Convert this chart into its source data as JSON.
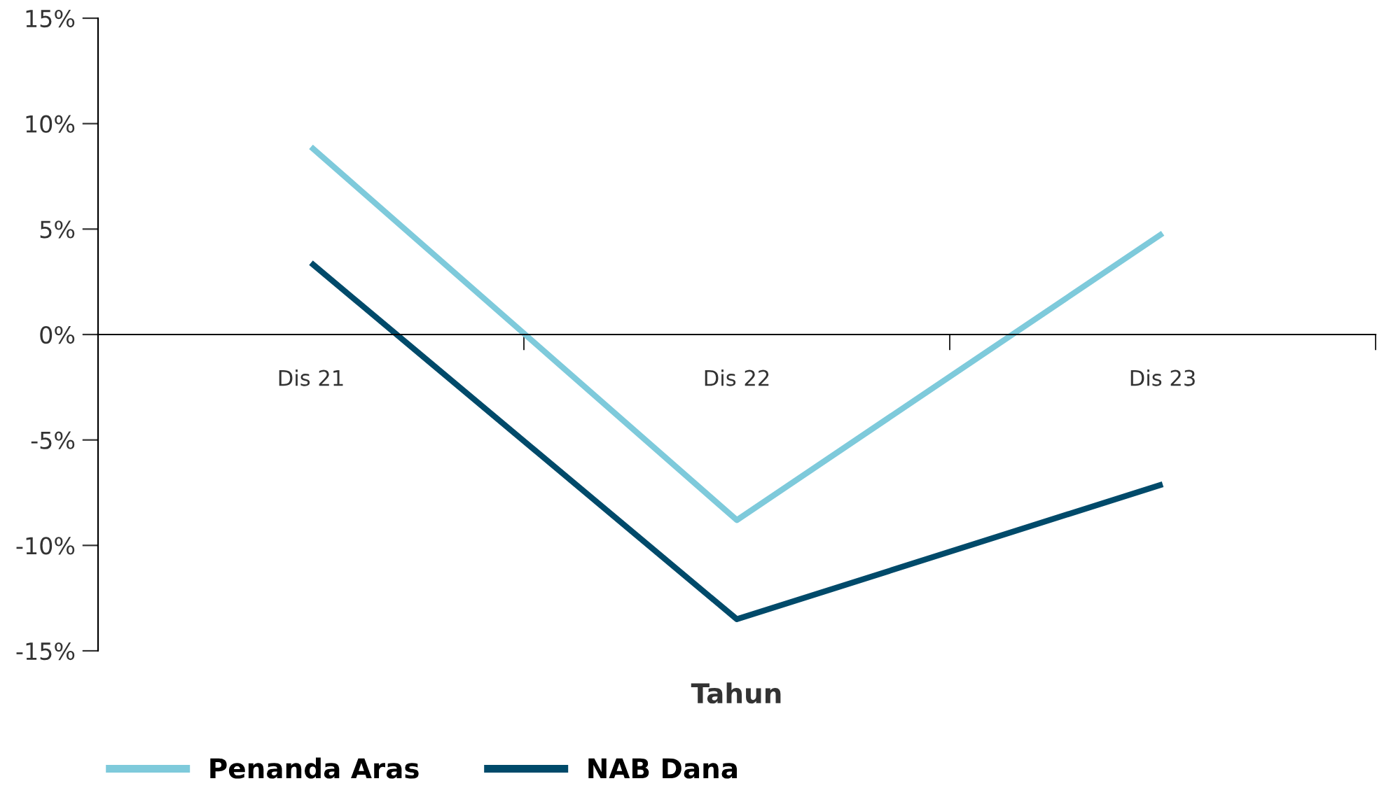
{
  "chart_data": {
    "type": "line",
    "xlabel": "Tahun",
    "categories": [
      "Dis 21",
      "Dis 22",
      "Dis 23"
    ],
    "series": [
      {
        "name": "Penanda Aras",
        "color": "#7ecadb",
        "values": [
          8.9,
          -8.8,
          4.8
        ]
      },
      {
        "name": "NAB Dana",
        "color": "#004a6a",
        "values": [
          3.4,
          -13.5,
          -7.1
        ]
      }
    ],
    "ylim": [
      -15,
      15
    ],
    "yticks": [
      {
        "value": -15,
        "label": "-15%"
      },
      {
        "value": -10,
        "label": "-10%"
      },
      {
        "value": -5,
        "label": "-5%"
      },
      {
        "value": 0,
        "label": "0%"
      },
      {
        "value": 5,
        "label": "5%"
      },
      {
        "value": 10,
        "label": "10%"
      },
      {
        "value": 15,
        "label": "15%"
      }
    ],
    "grid": false,
    "legend": "bottom left",
    "marker": "none",
    "line_style": "solid"
  }
}
